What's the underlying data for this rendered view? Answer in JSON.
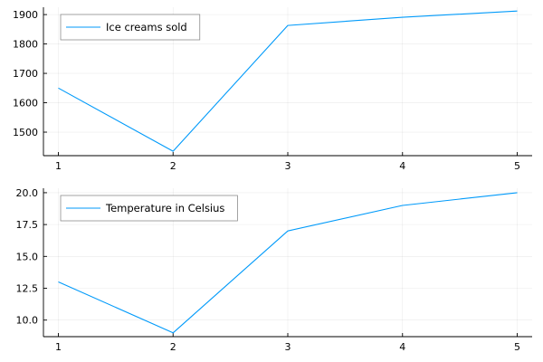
{
  "chart_data": [
    {
      "type": "line",
      "x": [
        1,
        2,
        3,
        4,
        5
      ],
      "xticks": [
        1,
        2,
        3,
        4,
        5
      ],
      "yticks": [
        1500,
        1600,
        1700,
        1800,
        1900
      ],
      "ylim": [
        1420,
        1925
      ],
      "xlim": [
        0.87,
        5.13
      ],
      "grid": true,
      "legend_position": "top-left",
      "series": [
        {
          "name": "Ice creams sold",
          "values": [
            1650,
            1435,
            1863,
            1891,
            1912
          ],
          "color": "#009AFA"
        }
      ]
    },
    {
      "type": "line",
      "x": [
        1,
        2,
        3,
        4,
        5
      ],
      "xticks": [
        1,
        2,
        3,
        4,
        5
      ],
      "yticks": [
        10.0,
        12.5,
        15.0,
        17.5,
        20.0
      ],
      "ytick_labels": [
        "10.0",
        "12.5",
        "15.0",
        "17.5",
        "20.0"
      ],
      "ylim": [
        8.7,
        20.35
      ],
      "xlim": [
        0.87,
        5.13
      ],
      "grid": true,
      "legend_position": "top-left",
      "series": [
        {
          "name": "Temperature in Celsius",
          "values": [
            13,
            9,
            17,
            19,
            20
          ],
          "color": "#009AFA"
        }
      ]
    }
  ]
}
